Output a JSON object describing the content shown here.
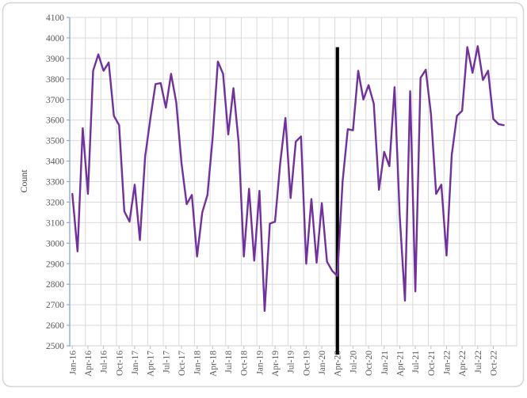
{
  "chart_data": {
    "type": "line",
    "title": "",
    "ylabel": "Count",
    "ylim": [
      2500,
      4100
    ],
    "ytick_step": 100,
    "grid": true,
    "legend": "none",
    "x": [
      "Jan-16",
      "Feb-16",
      "Mar-16",
      "Apr-16",
      "May-16",
      "Jun-16",
      "Jul-16",
      "Aug-16",
      "Sep-16",
      "Oct-16",
      "Nov-16",
      "Dec-16",
      "Jan-17",
      "Feb-17",
      "Mar-17",
      "Apr-17",
      "May-17",
      "Jun-17",
      "Jul-17",
      "Aug-17",
      "Sep-17",
      "Oct-17",
      "Nov-17",
      "Dec-17",
      "Jan-18",
      "Feb-18",
      "Mar-18",
      "Apr-18",
      "May-18",
      "Jun-18",
      "Jul-18",
      "Aug-18",
      "Sep-18",
      "Oct-18",
      "Nov-18",
      "Dec-18",
      "Jan-19",
      "Feb-19",
      "Mar-19",
      "Apr-19",
      "May-19",
      "Jun-19",
      "Jul-19",
      "Aug-19",
      "Sep-19",
      "Oct-19",
      "Nov-19",
      "Dec-19",
      "Jan-20",
      "Feb-20",
      "Mar-20",
      "Apr-20",
      "May-20",
      "Jun-20",
      "Jul-20",
      "Aug-20",
      "Sep-20",
      "Oct-20",
      "Nov-20",
      "Dec-20",
      "Jan-21",
      "Feb-21",
      "Mar-21",
      "Apr-21",
      "May-21",
      "Jun-21",
      "Jul-21",
      "Aug-21",
      "Sep-21",
      "Oct-21",
      "Nov-21",
      "Dec-21",
      "Jan-22",
      "Feb-22",
      "Mar-22",
      "Apr-22",
      "May-22",
      "Jun-22",
      "Jul-22",
      "Aug-22",
      "Sep-22",
      "Oct-22",
      "Nov-22",
      "Dec-22"
    ],
    "x_tick_labels": [
      "Jan-16",
      "Apr-16",
      "Jul-16",
      "Oct-16",
      "Jan-17",
      "Apr-17",
      "Jul-17",
      "Oct-17",
      "Jan-18",
      "Apr-18",
      "Jul-18",
      "Oct-18",
      "Jan-19",
      "Apr-19",
      "Jul-19",
      "Oct-19",
      "Jan-20",
      "Apr-20",
      "Jul-20",
      "Oct-20",
      "Jan-21",
      "Apr-21",
      "Jul-21",
      "Oct-21",
      "Jan-22",
      "Apr-22",
      "Jul-22",
      "Oct-22"
    ],
    "series": [
      {
        "name": "Count",
        "color": "#7030A0",
        "values": [
          3240,
          2960,
          3560,
          3240,
          3840,
          3920,
          3840,
          3880,
          3620,
          3575,
          3155,
          3105,
          3285,
          3015,
          3420,
          3605,
          3775,
          3780,
          3660,
          3825,
          3685,
          3390,
          3190,
          3235,
          2935,
          3150,
          3235,
          3515,
          3885,
          3825,
          3530,
          3755,
          3490,
          2935,
          3265,
          2915,
          3255,
          2670,
          3095,
          3105,
          3390,
          3610,
          3220,
          3495,
          3520,
          2900,
          3215,
          2905,
          3195,
          2910,
          2865,
          2840,
          3300,
          3555,
          3550,
          3840,
          3700,
          3770,
          3680,
          3260,
          3445,
          3375,
          3760,
          3130,
          2720,
          3740,
          2765,
          3805,
          3845,
          3630,
          3240,
          3285,
          2940,
          3430,
          3620,
          3645,
          3955,
          3830,
          3960,
          3795,
          3840,
          3605,
          3580,
          3575
        ]
      }
    ],
    "annotations": {
      "vline": {
        "x": "Apr-20",
        "color": "#000000",
        "top_value": 3955,
        "extends_below_axis": true
      }
    },
    "colors": {
      "y_axis": "#8EAADB",
      "x_axis": "#D9D9D9",
      "gridline": "#D9D9D9",
      "tick_label": "#595959",
      "axis_title": "#404040",
      "chart_border": "#D6D6D6"
    }
  }
}
